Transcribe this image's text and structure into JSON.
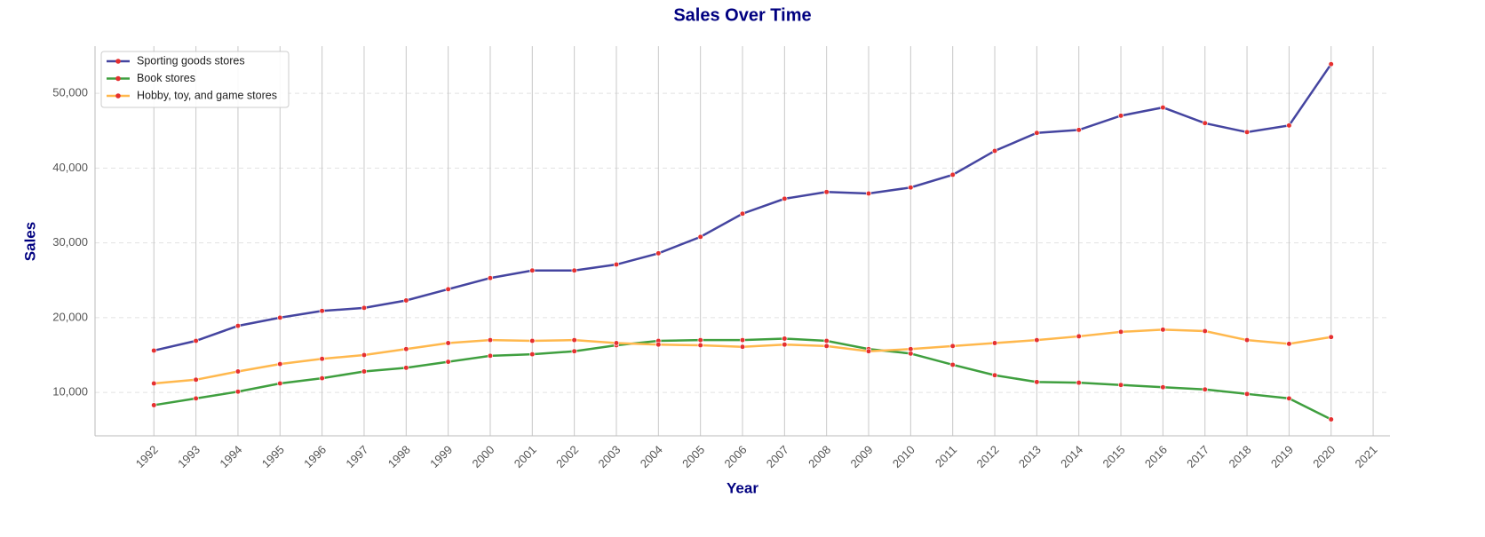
{
  "chart_data": {
    "type": "line",
    "title": "Sales Over Time",
    "x_label": "Year",
    "y_label": "Sales",
    "x": [
      1992,
      1993,
      1994,
      1995,
      1996,
      1997,
      1998,
      1999,
      2000,
      2001,
      2002,
      2003,
      2004,
      2005,
      2006,
      2007,
      2008,
      2009,
      2010,
      2011,
      2012,
      2013,
      2014,
      2015,
      2016,
      2017,
      2018,
      2019,
      2020
    ],
    "series": [
      {
        "name": "Sporting goods stores",
        "color": "#4545a0",
        "values": [
          15600,
          16900,
          18900,
          20000,
          20900,
          21300,
          22300,
          23800,
          25300,
          26300,
          26300,
          27100,
          28600,
          30800,
          33900,
          35900,
          36800,
          36600,
          37400,
          39100,
          42300,
          44700,
          45100,
          47000,
          48100,
          46000,
          44800,
          45700,
          53900
        ]
      },
      {
        "name": "Book stores",
        "color": "#3f9f3f",
        "values": [
          8300,
          9200,
          10100,
          11200,
          11900,
          12800,
          13300,
          14100,
          14900,
          15100,
          15500,
          16300,
          16900,
          17000,
          17000,
          17200,
          16900,
          15800,
          15200,
          13700,
          12300,
          11400,
          11300,
          11000,
          10700,
          10400,
          9800,
          9200,
          6400
        ]
      },
      {
        "name": "Hobby, toy, and game stores",
        "color": "#ffb84d",
        "values": [
          11200,
          11700,
          12800,
          13800,
          14500,
          15000,
          15800,
          16600,
          17000,
          16900,
          17000,
          16600,
          16400,
          16300,
          16100,
          16400,
          16200,
          15500,
          15800,
          16200,
          16600,
          17000,
          17500,
          18100,
          18400,
          18200,
          17000,
          16500,
          17400
        ]
      }
    ],
    "marker_color": "#e53030",
    "xlim": [
      1990.6,
      2021.4
    ],
    "xticks": [
      1992,
      1993,
      1994,
      1995,
      1996,
      1997,
      1998,
      1999,
      2000,
      2001,
      2002,
      2003,
      2004,
      2005,
      2006,
      2007,
      2008,
      2009,
      2010,
      2011,
      2012,
      2013,
      2014,
      2015,
      2016,
      2017,
      2018,
      2019,
      2020,
      2021
    ],
    "ylim": [
      4200,
      56300
    ],
    "yticks": [
      {
        "value": 10000,
        "label": "10,000"
      },
      {
        "value": 20000,
        "label": "20,000"
      },
      {
        "value": 30000,
        "label": "30,000"
      },
      {
        "value": 40000,
        "label": "40,000"
      },
      {
        "value": 50000,
        "label": "50,000"
      }
    ],
    "grid": true,
    "legend": "upper left"
  }
}
